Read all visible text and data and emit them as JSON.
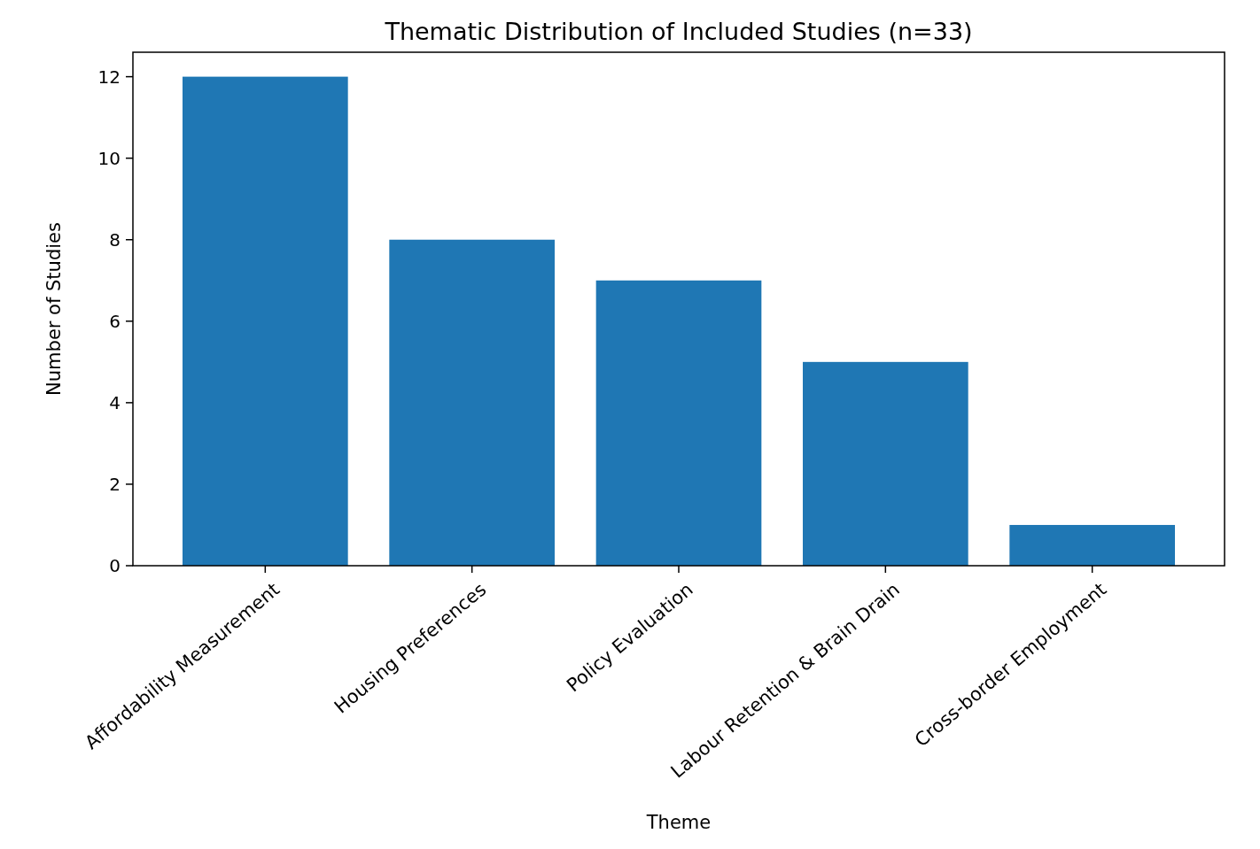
{
  "chart_data": {
    "type": "bar",
    "title": "Thematic Distribution of Included Studies (n=33)",
    "xlabel": "Theme",
    "ylabel": "Number of Studies",
    "categories": [
      "Affordability Measurement",
      "Housing Preferences",
      "Policy Evaluation",
      "Labour Retention & Brain Drain",
      "Cross-border Employment"
    ],
    "values": [
      12,
      8,
      7,
      5,
      1
    ],
    "color": "#1f77b4",
    "ylim": [
      0,
      12.6
    ],
    "yticks": [
      0,
      2,
      4,
      6,
      8,
      10,
      12
    ],
    "grid": false
  }
}
